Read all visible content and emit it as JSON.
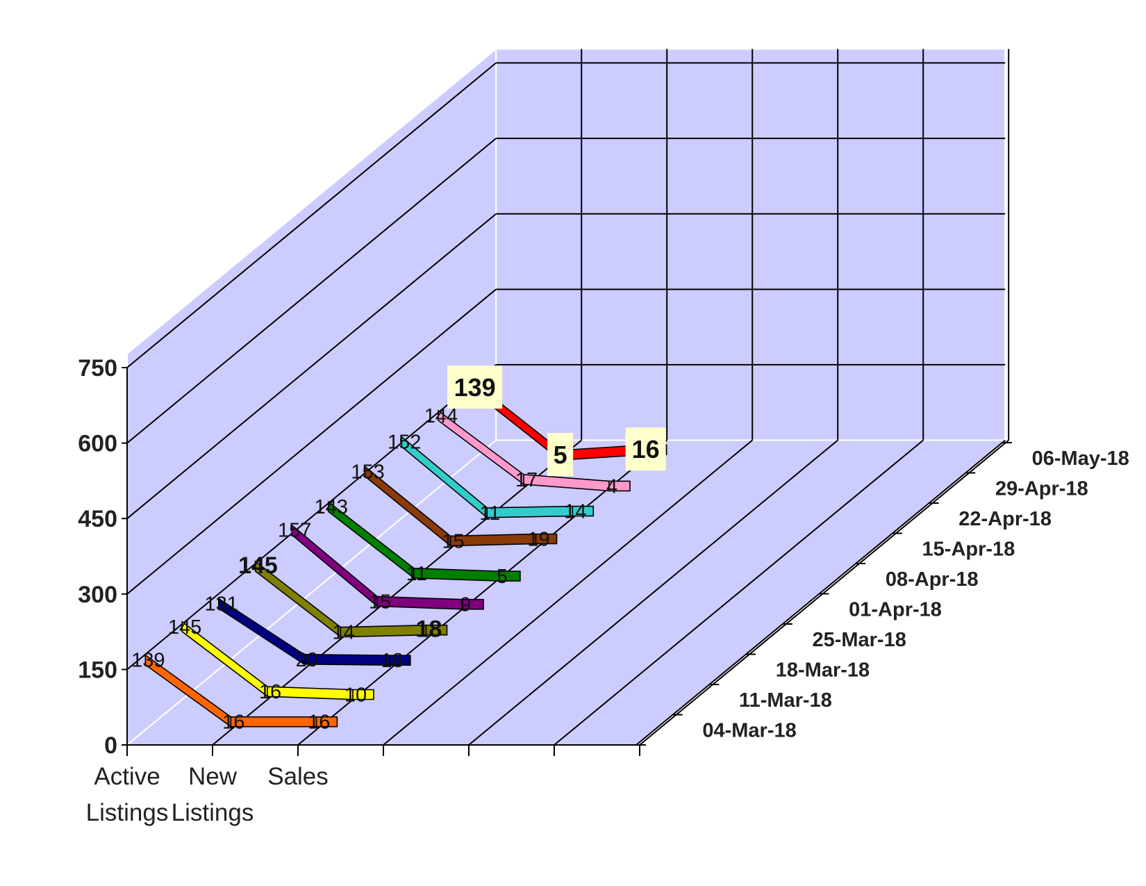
{
  "chart_data": {
    "type": "line",
    "categories": [
      [
        "Active",
        "Listings"
      ],
      [
        "New",
        "Listings"
      ],
      [
        "Sales"
      ]
    ],
    "x": [
      "04-Mar-18",
      "11-Mar-18",
      "18-Mar-18",
      "25-Mar-18",
      "01-Apr-18",
      "08-Apr-18",
      "15-Apr-18",
      "22-Apr-18",
      "29-Apr-18",
      "06-May-18"
    ],
    "series": [
      {
        "values": [
          139,
          16,
          16
        ],
        "color": "#ff6600"
      },
      {
        "values": [
          145,
          16,
          10
        ],
        "color": "#ffff00"
      },
      {
        "values": [
          131,
          20,
          18
        ],
        "color": "#000080"
      },
      {
        "values": [
          145,
          14,
          18
        ],
        "color": "#808000"
      },
      {
        "values": [
          157,
          15,
          9
        ],
        "color": "#800080"
      },
      {
        "values": [
          143,
          11,
          5
        ],
        "color": "#008000"
      },
      {
        "values": [
          153,
          15,
          19
        ],
        "color": "#8b3a0a"
      },
      {
        "values": [
          152,
          11,
          14
        ],
        "color": "#33cccc"
      },
      {
        "values": [
          144,
          17,
          4
        ],
        "color": "#ff99cc"
      },
      {
        "values": [
          139,
          5,
          16
        ],
        "color": "#ff0000"
      }
    ],
    "y_ticks": [
      "0",
      "150",
      "300",
      "450",
      "600",
      "750"
    ],
    "ylim": [
      0,
      750
    ],
    "wall_color": "#ccccff",
    "label_box_color": "#ffffcc",
    "grid": true,
    "view": "3d"
  }
}
